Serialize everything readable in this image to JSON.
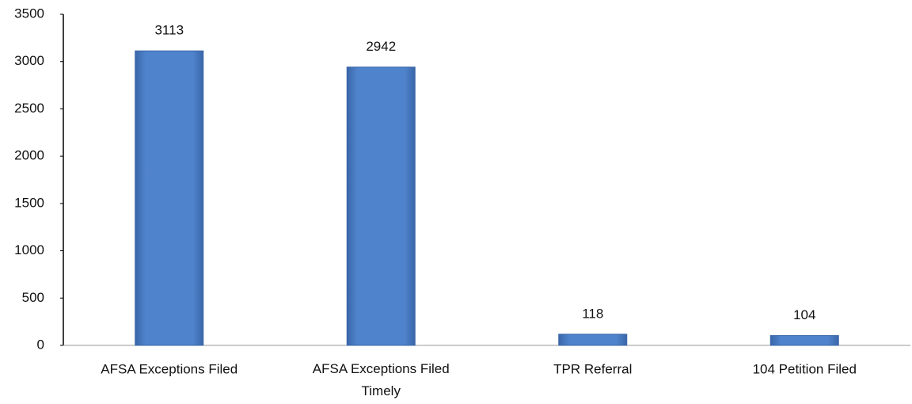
{
  "chart_data": {
    "type": "bar",
    "categories": [
      "AFSA Exceptions Filed",
      "AFSA Exceptions Filed Timely",
      "TPR Referral",
      "104 Petition Filed"
    ],
    "values": [
      3113,
      2942,
      118,
      104
    ],
    "color": "#4a7cc6",
    "ylim": [
      0,
      3500
    ],
    "yticks": [
      0,
      500,
      1000,
      1500,
      2000,
      2500,
      3000,
      3500
    ],
    "grid": false
  }
}
